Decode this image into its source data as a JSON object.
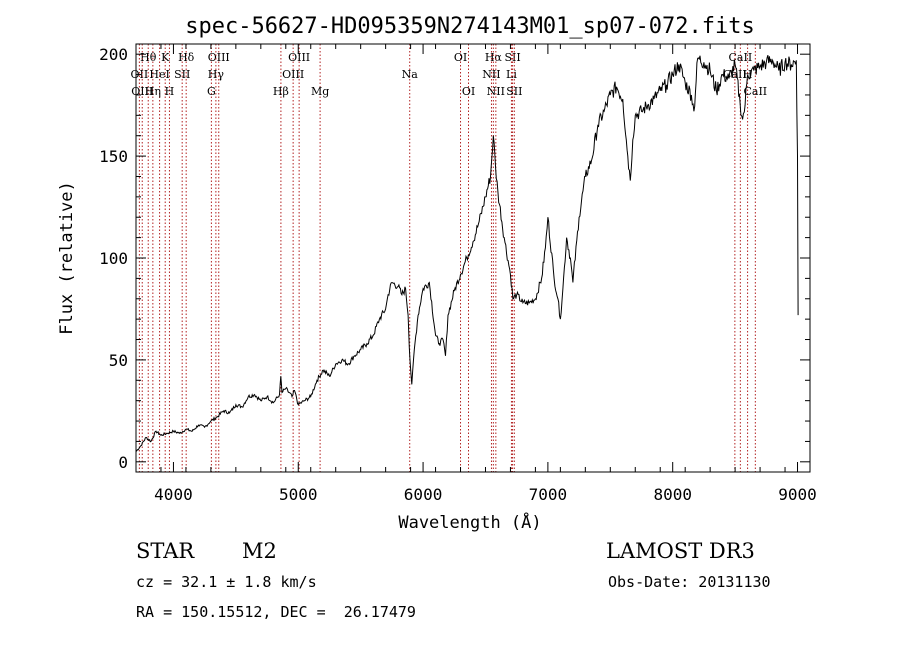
{
  "chart_data": {
    "type": "line",
    "title": "spec-56627-HD095359N274143M01_sp07-072.fits",
    "xlabel": "Wavelength (Å)",
    "ylabel": "Flux (relative)",
    "xlim": [
      3700,
      9100
    ],
    "ylim": [
      -5,
      205
    ],
    "xticks": [
      4000,
      5000,
      6000,
      7000,
      8000,
      9000
    ],
    "yticks": [
      0,
      50,
      100,
      150,
      200
    ],
    "grid": false,
    "line_color": "#000000",
    "marker_color": "#b22222",
    "series": [
      {
        "name": "flux",
        "x": [
          3700,
          3740,
          3780,
          3820,
          3860,
          3900,
          3950,
          4000,
          4050,
          4100,
          4150,
          4200,
          4250,
          4300,
          4350,
          4400,
          4450,
          4500,
          4550,
          4600,
          4650,
          4700,
          4750,
          4800,
          4850,
          4860,
          4870,
          4900,
          4950,
          4970,
          5000,
          5050,
          5100,
          5150,
          5200,
          5250,
          5300,
          5350,
          5400,
          5450,
          5500,
          5550,
          5600,
          5650,
          5700,
          5720,
          5750,
          5800,
          5830,
          5860,
          5880,
          5895,
          5910,
          5930,
          5960,
          6000,
          6050,
          6100,
          6130,
          6160,
          6180,
          6200,
          6250,
          6300,
          6350,
          6400,
          6450,
          6500,
          6540,
          6563,
          6580,
          6600,
          6650,
          6700,
          6720,
          6750,
          6800,
          6850,
          6900,
          6950,
          6980,
          7000,
          7050,
          7080,
          7100,
          7120,
          7150,
          7180,
          7200,
          7250,
          7300,
          7350,
          7400,
          7450,
          7500,
          7550,
          7600,
          7640,
          7660,
          7680,
          7700,
          7750,
          7800,
          7850,
          7900,
          7950,
          8000,
          8050,
          8100,
          8150,
          8170,
          8200,
          8250,
          8300,
          8350,
          8400,
          8450,
          8500,
          8540,
          8560,
          8580,
          8600,
          8650,
          8700,
          8750,
          8800,
          8850,
          8900,
          8950,
          8990,
          9000,
          9005
        ],
        "flux": [
          5,
          8,
          12,
          10,
          15,
          13,
          14,
          15,
          14,
          16,
          15,
          18,
          17,
          20,
          22,
          25,
          24,
          28,
          27,
          32,
          33,
          30,
          32,
          29,
          33,
          42,
          34,
          36,
          32,
          35,
          28,
          30,
          32,
          40,
          45,
          42,
          48,
          50,
          48,
          52,
          55,
          58,
          62,
          70,
          75,
          82,
          88,
          86,
          82,
          85,
          72,
          50,
          38,
          55,
          72,
          85,
          88,
          62,
          58,
          60,
          52,
          72,
          84,
          92,
          100,
          108,
          118,
          130,
          140,
          160,
          145,
          132,
          110,
          92,
          80,
          82,
          78,
          78,
          80,
          90,
          105,
          120,
          90,
          80,
          70,
          85,
          110,
          100,
          88,
          120,
          140,
          148,
          165,
          172,
          180,
          184,
          178,
          150,
          138,
          158,
          170,
          172,
          175,
          178,
          182,
          185,
          190,
          195,
          186,
          180,
          172,
          198,
          196,
          192,
          182,
          190,
          188,
          195,
          176,
          168,
          175,
          190,
          192,
          194,
          196,
          197,
          192,
          196,
          195,
          197,
          150,
          72
        ]
      }
    ],
    "lines": {
      "row1": [
        {
          "label": "Hθ",
          "x": 3798
        },
        {
          "label": "K",
          "x": 3934
        },
        {
          "label": "Hδ",
          "x": 4102
        },
        {
          "label": "OIII",
          "x": 4363
        },
        {
          "label": "OIII",
          "x": 5007
        },
        {
          "label": "OI",
          "x": 6300
        },
        {
          "label": "Hα",
          "x": 6563
        },
        {
          "label": "SII",
          "x": 6717
        },
        {
          "label": "CaII",
          "x": 8542
        }
      ],
      "row2": [
        {
          "label": "OII",
          "x": 3727
        },
        {
          "label": "HeI",
          "x": 3889
        },
        {
          "label": "SII",
          "x": 4070
        },
        {
          "label": "Hγ",
          "x": 4340
        },
        {
          "label": "OIII",
          "x": 4959
        },
        {
          "label": "Na",
          "x": 5893
        },
        {
          "label": "NII",
          "x": 6548
        },
        {
          "label": "Li",
          "x": 6708
        },
        {
          "label": "CaII",
          "x": 8498
        },
        {
          "label": "H",
          "x": 8600
        }
      ],
      "row3": [
        {
          "label": "OIII",
          "x": 3750
        },
        {
          "label": "Hη",
          "x": 3835
        },
        {
          "label": "H",
          "x": 3968
        },
        {
          "label": "G",
          "x": 4304
        },
        {
          "label": "Hβ",
          "x": 4861
        },
        {
          "label": "Mg",
          "x": 5175
        },
        {
          "label": "OI",
          "x": 6364
        },
        {
          "label": "NII",
          "x": 6583
        },
        {
          "label": "SII",
          "x": 6731
        },
        {
          "label": "CaII",
          "x": 8662
        }
      ]
    }
  },
  "info": {
    "class_label": "STAR",
    "subclass": "M2",
    "cz_text": "cz = 32.1 ± 1.8 km/s",
    "radec_text": "RA = 150.15512, DEC =  26.17479",
    "survey": "LAMOST DR3",
    "obs_date": "Obs-Date: 20131130"
  }
}
